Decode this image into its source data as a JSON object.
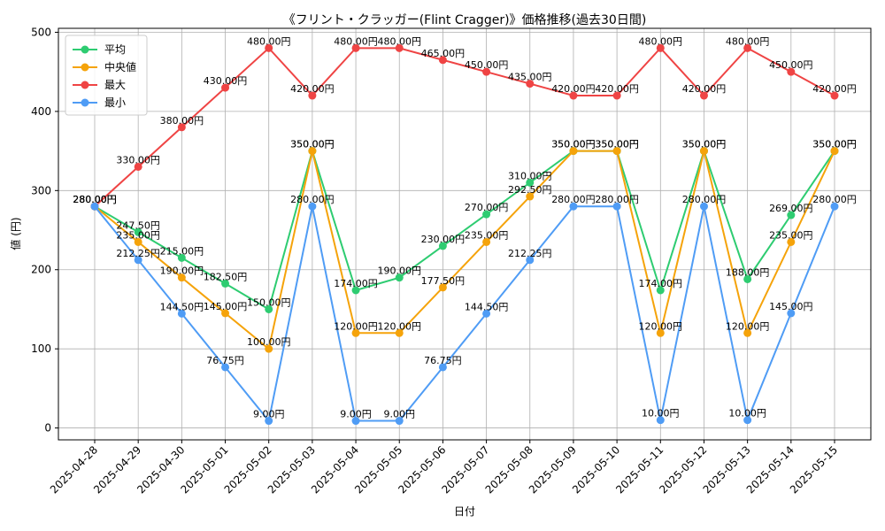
{
  "chart_data": {
    "type": "line",
    "title": "《フリント・クラッガー(Flint Cragger)》価格推移(過去30日間)",
    "xlabel": "日付",
    "ylabel": "値 (円)",
    "ylim": [
      -15,
      505
    ],
    "yticks": [
      0,
      100,
      200,
      300,
      400,
      500
    ],
    "grid": true,
    "legend_position": "top-left",
    "value_suffix": "円",
    "x": [
      "2025-04-28",
      "2025-04-29",
      "2025-04-30",
      "2025-05-01",
      "2025-05-02",
      "2025-05-03",
      "2025-05-04",
      "2025-05-05",
      "2025-05-06",
      "2025-05-07",
      "2025-05-08",
      "2025-05-09",
      "2025-05-10",
      "2025-05-11",
      "2025-05-12",
      "2025-05-13",
      "2025-05-14",
      "2025-05-15"
    ],
    "series": [
      {
        "name": "平均",
        "color": "#2ecc71",
        "values": [
          280.0,
          247.5,
          215.0,
          182.5,
          150.0,
          350.0,
          174.0,
          190.0,
          230.0,
          270.0,
          310.0,
          350.0,
          350.0,
          174.0,
          350.0,
          188.0,
          269.0,
          350.0
        ]
      },
      {
        "name": "中央値",
        "color": "#f5a30a",
        "values": [
          280.0,
          235.0,
          190.0,
          145.0,
          100.0,
          350.0,
          120.0,
          120.0,
          177.5,
          235.0,
          292.5,
          350.0,
          350.0,
          120.0,
          350.0,
          120.0,
          235.0,
          350.0
        ]
      },
      {
        "name": "最大",
        "color": "#ef4444",
        "values": [
          280.0,
          330.0,
          380.0,
          430.0,
          480.0,
          420.0,
          480.0,
          480.0,
          465.0,
          450.0,
          435.0,
          420.0,
          420.0,
          480.0,
          420.0,
          480.0,
          450.0,
          420.0
        ]
      },
      {
        "name": "最小",
        "color": "#4f9cf5",
        "values": [
          280.0,
          212.25,
          144.5,
          76.75,
          9.0,
          280.0,
          9.0,
          9.0,
          76.75,
          144.5,
          212.25,
          280.0,
          280.0,
          10.0,
          280.0,
          10.0,
          145.0,
          280.0
        ]
      }
    ]
  }
}
